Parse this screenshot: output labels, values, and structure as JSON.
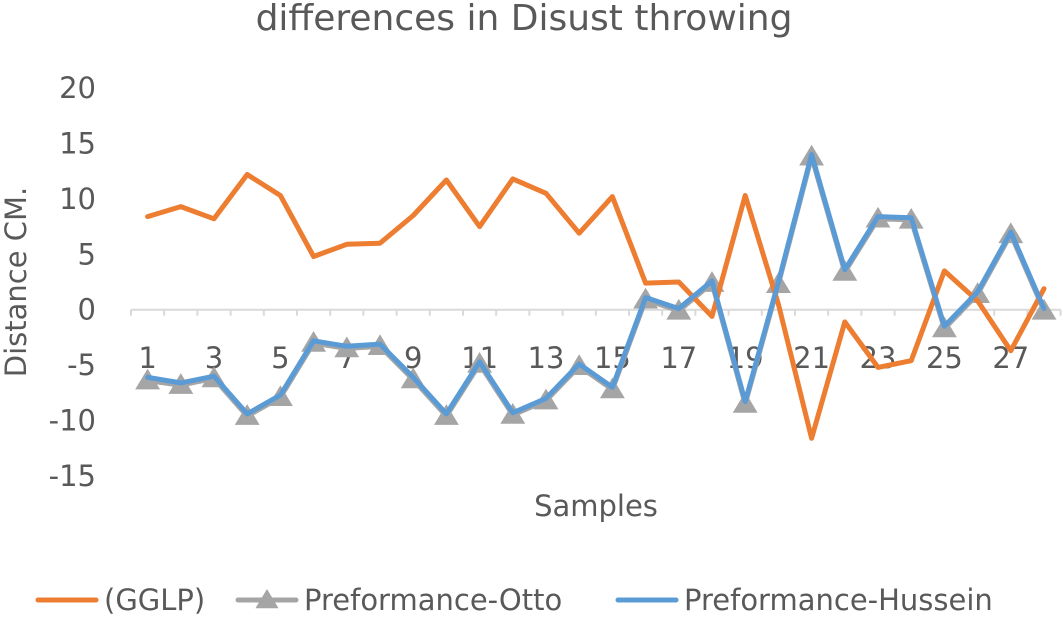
{
  "chart_data": {
    "type": "line",
    "title": "differences in Disust throwing",
    "xlabel": "Samples",
    "ylabel": "Distance CM.",
    "ylim": [
      -15,
      20
    ],
    "y_ticks": [
      -15,
      -10,
      -5,
      0,
      5,
      10,
      15,
      20
    ],
    "categories": [
      "1",
      "2",
      "3",
      "4",
      "5",
      "6",
      "7",
      "8",
      "9",
      "10",
      "11",
      "12",
      "13",
      "14",
      "15",
      "16",
      "17",
      "18",
      "19",
      "20",
      "21",
      "22",
      "23",
      "24",
      "25",
      "26",
      "27",
      "28"
    ],
    "x_tick_labels": [
      "1",
      "3",
      "5",
      "7",
      "9",
      "11",
      "13",
      "15",
      "17",
      "19",
      "21",
      "23",
      "25",
      "27"
    ],
    "grid": false,
    "legend_position": "bottom",
    "series": [
      {
        "name": "(GGLP)",
        "color": "#ED7D31",
        "marker": "none",
        "values": [
          8.4,
          9.3,
          8.2,
          12.2,
          10.3,
          4.8,
          5.9,
          6.0,
          8.5,
          11.7,
          7.5,
          11.8,
          10.5,
          6.9,
          10.2,
          2.4,
          2.5,
          -0.6,
          10.3,
          0.5,
          -11.6,
          -1.1,
          -5.2,
          -4.6,
          3.5,
          0.8,
          -3.7,
          1.9
        ]
      },
      {
        "name": "Preformance-Otto",
        "color": "#A5A5A5",
        "marker": "triangle",
        "values": [
          -6.4,
          -6.8,
          -6.2,
          -9.6,
          -7.9,
          -3.0,
          -3.5,
          -3.3,
          -6.3,
          -9.6,
          -4.9,
          -9.5,
          -8.2,
          -5.1,
          -7.2,
          0.9,
          -0.1,
          2.4,
          -8.5,
          2.3,
          13.8,
          3.4,
          8.2,
          8.1,
          -1.7,
          1.4,
          6.8,
          -0.1
        ]
      },
      {
        "name": "Preformance-Hussein",
        "color": "#5B9BD5",
        "marker": "none",
        "values": [
          -6.1,
          -6.6,
          -6.0,
          -9.4,
          -7.7,
          -2.8,
          -3.3,
          -3.1,
          -6.1,
          -9.4,
          -4.7,
          -9.3,
          -8.0,
          -4.9,
          -7.0,
          1.1,
          0.1,
          2.6,
          -8.3,
          2.5,
          14.0,
          3.6,
          8.4,
          8.3,
          -1.5,
          1.6,
          7.0,
          0.1
        ]
      }
    ]
  }
}
